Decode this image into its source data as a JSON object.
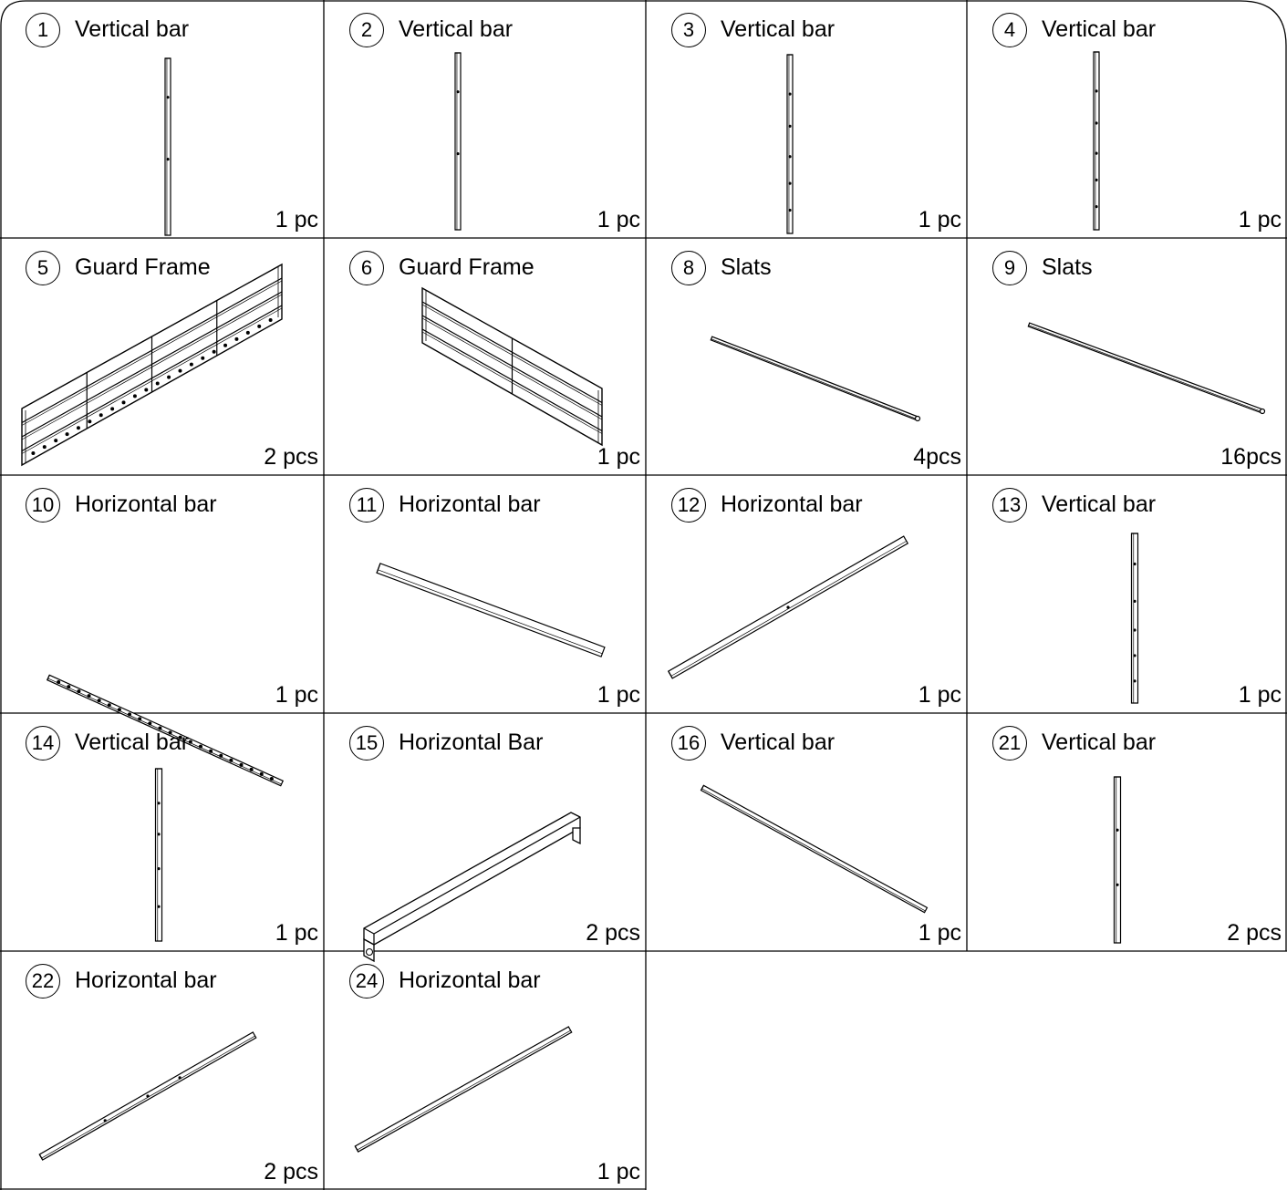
{
  "parts": [
    {
      "number": "1",
      "name": "Vertical bar",
      "quantity": "1 pc",
      "drawing": "vertical-bar"
    },
    {
      "number": "2",
      "name": "Vertical bar",
      "quantity": "1 pc",
      "drawing": "vertical-bar"
    },
    {
      "number": "3",
      "name": "Vertical bar",
      "quantity": "1 pc",
      "drawing": "vertical-bar"
    },
    {
      "number": "4",
      "name": "Vertical bar",
      "quantity": "1 pc",
      "drawing": "vertical-bar"
    },
    {
      "number": "5",
      "name": "Guard Frame",
      "quantity": "2 pcs",
      "drawing": "guard-frame-left"
    },
    {
      "number": "6",
      "name": "Guard Frame",
      "quantity": "1 pc",
      "drawing": "guard-frame-right"
    },
    {
      "number": "8",
      "name": "Slats",
      "quantity": "4pcs",
      "drawing": "slat"
    },
    {
      "number": "9",
      "name": "Slats",
      "quantity": "16pcs",
      "drawing": "slat"
    },
    {
      "number": "10",
      "name": "Horizontal bar",
      "quantity": "1 pc",
      "drawing": "horizontal-bar-holes"
    },
    {
      "number": "11",
      "name": "Horizontal bar",
      "quantity": "1 pc",
      "drawing": "horizontal-bar"
    },
    {
      "number": "12",
      "name": "Horizontal bar",
      "quantity": "1 pc",
      "drawing": "horizontal-bar"
    },
    {
      "number": "13",
      "name": "Vertical bar",
      "quantity": "1 pc",
      "drawing": "vertical-bar"
    },
    {
      "number": "14",
      "name": "Vertical bar",
      "quantity": "1 pc",
      "drawing": "vertical-bar"
    },
    {
      "number": "15",
      "name": "Horizontal Bar",
      "quantity": "2 pcs",
      "drawing": "bracket-bar"
    },
    {
      "number": "16",
      "name": "Vertical bar",
      "quantity": "1 pc",
      "drawing": "horizontal-bar"
    },
    {
      "number": "21",
      "name": "Vertical bar",
      "quantity": "2 pcs",
      "drawing": "vertical-bar"
    },
    {
      "number": "22",
      "name": "Horizontal bar",
      "quantity": "2 pcs",
      "drawing": "horizontal-bar"
    },
    {
      "number": "24",
      "name": "Horizontal bar",
      "quantity": "1 pc",
      "drawing": "horizontal-bar"
    }
  ]
}
